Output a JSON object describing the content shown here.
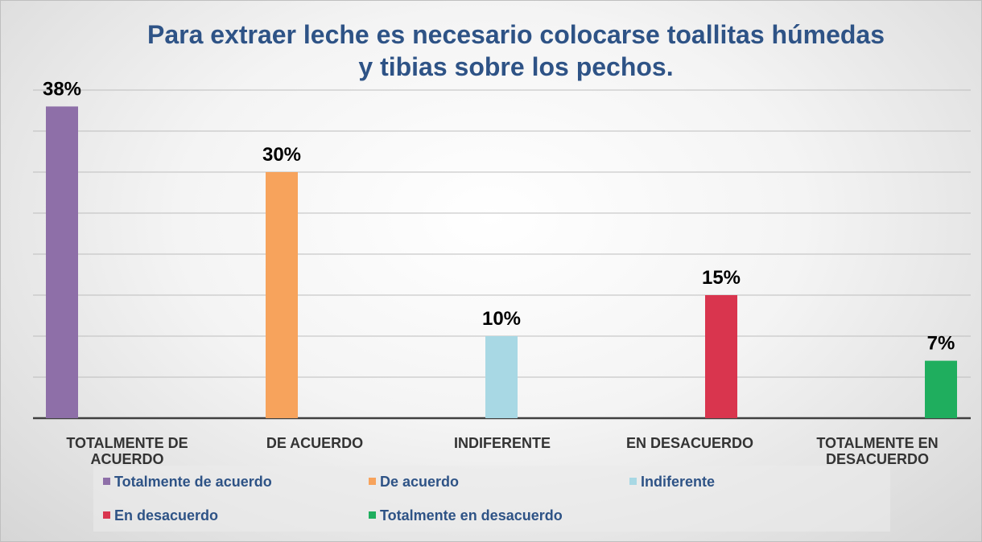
{
  "chart_data": {
    "type": "bar",
    "title": "Para extraer leche es necesario colocarse toallitas húmedas y tibias sobre los pechos.",
    "categories": [
      "TOTALMENTE DE ACUERDO",
      "DE ACUERDO",
      "INDIFERENTE",
      "EN DESACUERDO",
      "TOTALMENTE EN DESACUERDO"
    ],
    "series": [
      {
        "name": "Totalmente de acuerdo",
        "color": "#8e6fa8",
        "values": [
          38,
          null,
          null,
          null,
          null
        ],
        "value_labels": [
          "38%",
          null,
          null,
          null,
          null
        ]
      },
      {
        "name": "De acuerdo",
        "color": "#f7a35c",
        "values": [
          null,
          30,
          null,
          null,
          null
        ],
        "value_labels": [
          null,
          "30%",
          null,
          null,
          null
        ]
      },
      {
        "name": "Indiferente",
        "color": "#a8d8e4",
        "values": [
          null,
          null,
          10,
          null,
          null
        ],
        "value_labels": [
          null,
          null,
          "10%",
          null,
          null
        ]
      },
      {
        "name": "En desacuerdo",
        "color": "#d9354e",
        "values": [
          null,
          null,
          null,
          15,
          null
        ],
        "value_labels": [
          null,
          null,
          null,
          "15%",
          null
        ]
      },
      {
        "name": "Totalmente en desacuerdo",
        "color": "#1fae5e",
        "values": [
          null,
          null,
          null,
          null,
          7
        ],
        "value_labels": [
          null,
          null,
          null,
          null,
          "7%"
        ]
      }
    ],
    "ylim": [
      0,
      40
    ],
    "yticks": [
      0,
      5,
      10,
      15,
      20,
      25,
      30,
      35,
      40
    ],
    "grid": true,
    "tick_labels": false,
    "legend": "bottom"
  }
}
